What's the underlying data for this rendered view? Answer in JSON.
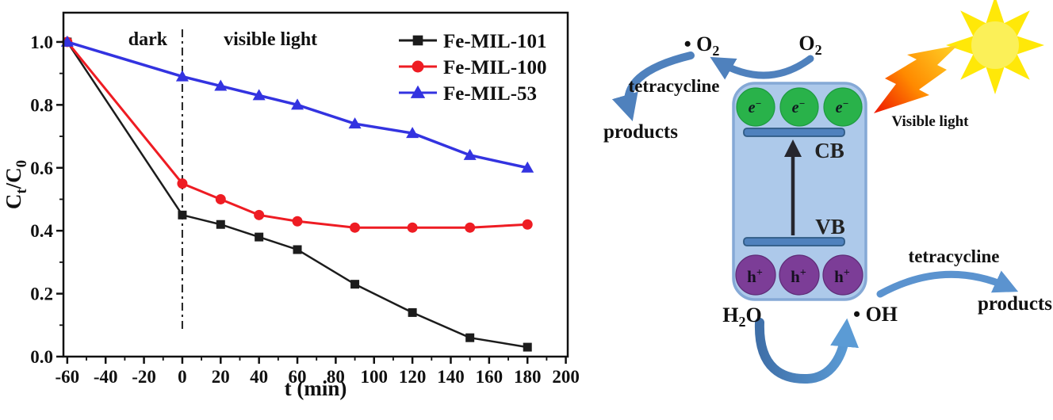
{
  "chart_data": {
    "type": "line",
    "title": "",
    "xlabel": "t (min)",
    "ylabel": "Ct/C0",
    "ylabel_parts": [
      {
        "text": "C"
      },
      {
        "text": "t",
        "sub": true
      },
      {
        "text": "/C"
      },
      {
        "text": "0",
        "sub": true
      }
    ],
    "x": [
      -60,
      0,
      20,
      40,
      60,
      90,
      120,
      150,
      180
    ],
    "series": [
      {
        "name": "Fe-MIL-101",
        "color": "#1c1c1c",
        "marker": "square",
        "line_width": 2.5,
        "values": [
          1.0,
          0.45,
          0.42,
          0.38,
          0.34,
          0.23,
          0.14,
          0.06,
          0.03
        ]
      },
      {
        "name": "Fe-MIL-100",
        "color": "#ee1c23",
        "marker": "circle",
        "line_width": 3,
        "values": [
          1.0,
          0.55,
          0.5,
          0.45,
          0.43,
          0.41,
          0.41,
          0.41,
          0.42
        ]
      },
      {
        "name": "Fe-MIL-53",
        "color": "#3333e0",
        "marker": "triangle",
        "line_width": 3.5,
        "values": [
          1.0,
          0.89,
          0.86,
          0.83,
          0.8,
          0.74,
          0.71,
          0.64,
          0.6
        ]
      }
    ],
    "xlim": [
      -62,
      201
    ],
    "ylim": [
      0,
      1.093
    ],
    "xticks": [
      -60,
      -40,
      -20,
      0,
      20,
      40,
      60,
      80,
      100,
      120,
      140,
      160,
      180,
      200
    ],
    "x_minor_step": 10,
    "yticks": [
      0,
      0.2,
      0.4,
      0.6,
      0.8,
      1.0
    ],
    "ytick_labels": [
      "0.0",
      "0.2",
      "0.4",
      "0.6",
      "0.8",
      "1.0"
    ],
    "y_minor_step": 0.1,
    "grid": false,
    "legend_position": "top-right-inside",
    "divider_x": 0,
    "annotations": [
      {
        "text": "dark",
        "x": -18,
        "y": 1.01
      },
      {
        "text": "visible light",
        "x": 46,
        "y": 1.01
      }
    ]
  },
  "diagram": {
    "labels": {
      "superoxide": {
        "pre": "• O",
        "sub": "2"
      },
      "oxygen": {
        "pre": "O",
        "sub": "2"
      },
      "tetracycline_top": "tetracycline",
      "products_top": "products",
      "visible_light": "Visible light",
      "cb": "CB",
      "vb": "VB",
      "electron": {
        "base": "e",
        "sup": "−"
      },
      "hole": {
        "base": "h",
        "sup": "+"
      },
      "water": {
        "pre": "H",
        "sub": "2",
        "post": "O"
      },
      "hydroxyl": "• OH",
      "tetracycline_right": "tetracycline",
      "products_right": "products"
    },
    "colors": {
      "arrow": "#4f81bd",
      "arrow_light": "#5b93cf",
      "arrow_grad_start": "#3f6fa8",
      "arrow_grad_end": "#5b9bd5",
      "semiconductor_fill": "#adc9ea",
      "semiconductor_border": "#85a9d6",
      "band_bar_fill": "#4f81bd",
      "band_bar_border": "#2f5a84",
      "electron_fill": "#29b24a",
      "electron_border": "#1d9a3f",
      "hole_fill": "#7c3d97",
      "hole_border": "#5e2b76",
      "sun_ray": "#ffe808",
      "sun_body": "#fbf058",
      "bolt_grad_start": "#ffd428",
      "bolt_grad_mid": "#ff8a00",
      "bolt_grad_end": "#ee1400",
      "band_arrow": "#26262e",
      "text": "#111111"
    }
  }
}
